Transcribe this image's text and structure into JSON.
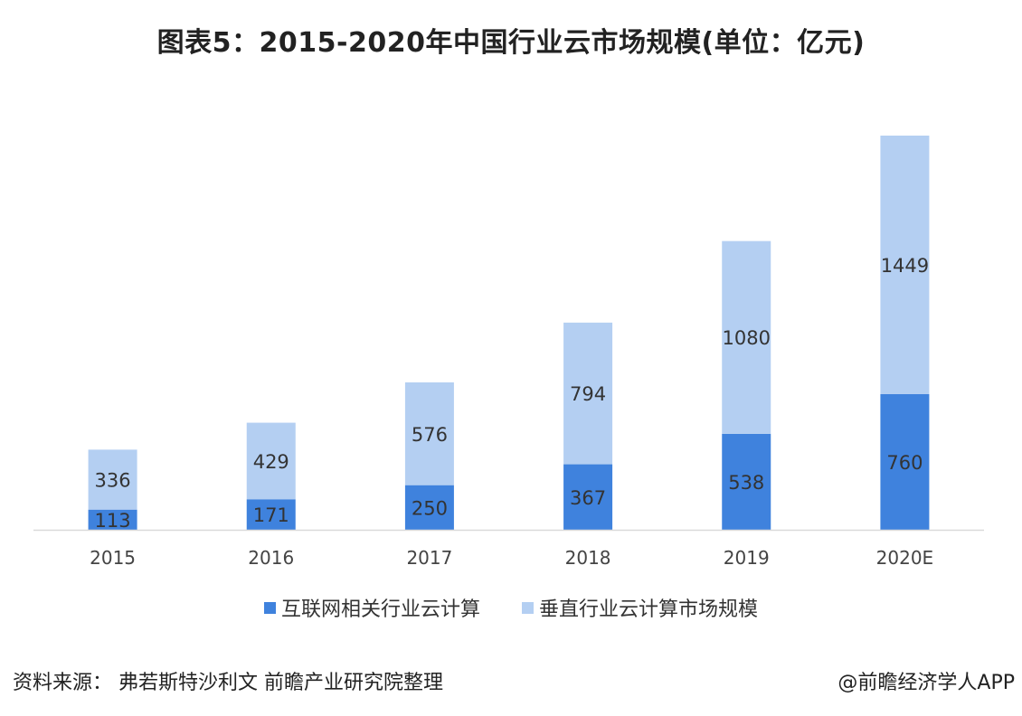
{
  "title": "图表5：2015-2020年中国行业云市场规模(单位：亿元)",
  "colors": {
    "internet": "#3f82dd",
    "vertical": "#b4cff2",
    "axis": "#d9d9d9"
  },
  "chart_data": {
    "type": "bar",
    "stacked": true,
    "categories": [
      "2015",
      "2016",
      "2017",
      "2018",
      "2019",
      "2020E"
    ],
    "series": [
      {
        "name": "互联网相关行业云计算",
        "values": [
          113,
          171,
          250,
          367,
          538,
          760
        ]
      },
      {
        "name": "垂直行业云计算市场规模",
        "values": [
          336,
          429,
          576,
          794,
          1080,
          1449
        ]
      }
    ],
    "data_labels": true,
    "legend_position": "bottom",
    "grid": false
  },
  "source": "资料来源：  弗若斯特沙利文 前瞻产业研究院整理",
  "credit": "@前瞻经济学人APP"
}
